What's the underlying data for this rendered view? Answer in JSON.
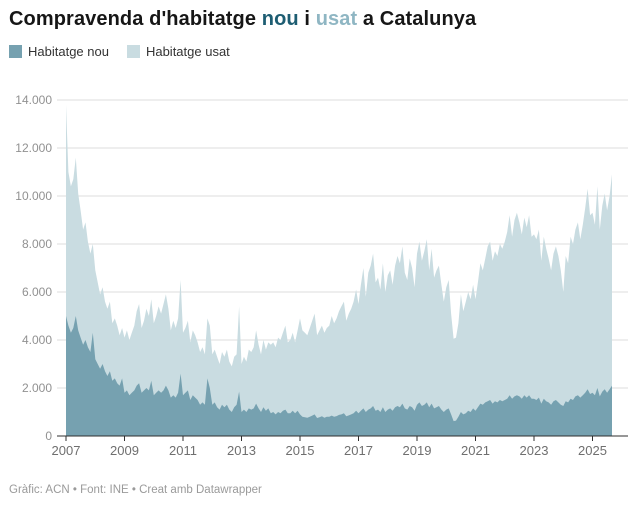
{
  "title": {
    "segments": [
      {
        "text": "Compravenda d'habitatge ",
        "color": "#161616"
      },
      {
        "text": "nou",
        "color": "#1d5d72"
      },
      {
        "text": " i ",
        "color": "#161616"
      },
      {
        "text": "usat",
        "color": "#8fb6c3"
      },
      {
        "text": " a Catalunya",
        "color": "#161616"
      }
    ]
  },
  "legend": {
    "items": [
      {
        "label": "Habitatge nou",
        "color": "#76a1b0"
      },
      {
        "label": "Habitatge usat",
        "color": "#c9dce1"
      }
    ]
  },
  "footer": {
    "text": "Gràfic: ACN • Font: INE • Creat amb Datawrapper"
  },
  "chart_data": {
    "type": "area",
    "stacked": true,
    "frequency": "monthly",
    "x_start": "2007-01",
    "x_end": "2025-09",
    "title": "Compravenda d'habitatge nou i usat a Catalunya",
    "ylabel": "",
    "xlabel": "",
    "ylim": [
      0,
      14000
    ],
    "grid": "horizontal",
    "legend_position": "top-left",
    "y_ticks": [
      {
        "v": 14000,
        "label": "14.000"
      },
      {
        "v": 12000,
        "label": "12.000"
      },
      {
        "v": 10000,
        "label": "10.000"
      },
      {
        "v": 8000,
        "label": "8.000"
      },
      {
        "v": 6000,
        "label": "6.000"
      },
      {
        "v": 4000,
        "label": "4.000"
      },
      {
        "v": 2000,
        "label": "2.000"
      },
      {
        "v": 0,
        "label": "0"
      }
    ],
    "x_ticks": [
      {
        "year": 2007,
        "label": "2007"
      },
      {
        "year": 2009,
        "label": "2009"
      },
      {
        "year": 2011,
        "label": "2011"
      },
      {
        "year": 2013,
        "label": "2013"
      },
      {
        "year": 2015,
        "label": "2015"
      },
      {
        "year": 2017,
        "label": "2017"
      },
      {
        "year": 2019,
        "label": "2019"
      },
      {
        "year": 2021,
        "label": "2021"
      },
      {
        "year": 2023,
        "label": "2023"
      },
      {
        "year": 2025,
        "label": "2025"
      }
    ],
    "series": [
      {
        "name": "Habitatge nou",
        "color": "#76a1b0",
        "values": [
          5000,
          4600,
          4300,
          4500,
          5000,
          4400,
          4100,
          3800,
          4000,
          3700,
          3500,
          4300,
          3200,
          3000,
          2800,
          3000,
          2700,
          2500,
          2700,
          2300,
          2400,
          2200,
          2100,
          2400,
          1800,
          1900,
          1700,
          1800,
          1900,
          2100,
          2200,
          1800,
          1900,
          2000,
          1900,
          2300,
          1700,
          1800,
          1900,
          1800,
          1900,
          2100,
          1900,
          1600,
          1700,
          1600,
          1800,
          2600,
          1700,
          1800,
          1900,
          1500,
          1700,
          1600,
          1500,
          1300,
          1400,
          1300,
          2400,
          2000,
          1300,
          1400,
          1200,
          1100,
          1300,
          1200,
          1300,
          1100,
          1000,
          1200,
          1300,
          1850,
          1000,
          1100,
          1000,
          1150,
          1100,
          1150,
          1350,
          1150,
          1000,
          1200,
          1050,
          1150,
          950,
          1000,
          900,
          1000,
          950,
          1050,
          1100,
          950,
          950,
          1050,
          950,
          1050,
          900,
          800,
          780,
          760,
          800,
          850,
          900,
          750,
          780,
          820,
          760,
          800,
          800,
          850,
          800,
          830,
          880,
          900,
          950,
          820,
          860,
          900,
          950,
          1050,
          950,
          1050,
          1150,
          1000,
          1100,
          1150,
          1250,
          1050,
          1100,
          1000,
          1200,
          1000,
          1100,
          1150,
          1050,
          1200,
          1250,
          1200,
          1350,
          1150,
          1100,
          1250,
          1200,
          1050,
          1300,
          1400,
          1250,
          1300,
          1400,
          1200,
          1350,
          1150,
          1200,
          1250,
          1100,
          1000,
          1100,
          1150,
          900,
          620,
          640,
          800,
          1000,
          900,
          950,
          1050,
          1000,
          1150,
          1050,
          1200,
          1350,
          1300,
          1400,
          1450,
          1500,
          1350,
          1450,
          1400,
          1500,
          1450,
          1500,
          1550,
          1700,
          1550,
          1650,
          1700,
          1650,
          1550,
          1700,
          1600,
          1700,
          1550,
          1550,
          1500,
          1600,
          1350,
          1550,
          1450,
          1400,
          1300,
          1450,
          1500,
          1400,
          1300,
          1250,
          1450,
          1400,
          1550,
          1500,
          1650,
          1700,
          1600,
          1700,
          1800,
          1950,
          1750,
          1800,
          1700,
          2000,
          1650,
          1850,
          1950,
          1800,
          1950,
          2100
        ]
      },
      {
        "name": "Habitatge usat",
        "color": "#c9dce1",
        "values": [
          8800,
          6400,
          6100,
          6200,
          6600,
          5700,
          5300,
          4800,
          4900,
          4400,
          4100,
          3700,
          3700,
          3400,
          3100,
          3200,
          2900,
          2800,
          2900,
          2400,
          2500,
          2400,
          2100,
          2100,
          2300,
          2500,
          2300,
          2500,
          2700,
          3100,
          3300,
          2700,
          2900,
          3300,
          3100,
          3400,
          3000,
          3200,
          3500,
          3300,
          3600,
          3800,
          3400,
          2800,
          3100,
          2900,
          3100,
          3900,
          2600,
          2700,
          2900,
          2400,
          2700,
          2600,
          2400,
          2200,
          2300,
          2100,
          2500,
          2600,
          2100,
          2200,
          2100,
          1900,
          2200,
          2100,
          2300,
          2000,
          1900,
          2100,
          2100,
          3550,
          2000,
          2200,
          2100,
          2450,
          2400,
          2550,
          3050,
          2650,
          2400,
          2800,
          2550,
          2750,
          2850,
          2900,
          2800,
          3100,
          3050,
          3250,
          3500,
          2950,
          3050,
          3250,
          2950,
          3350,
          4000,
          3600,
          3520,
          3440,
          3700,
          3950,
          4200,
          3450,
          3620,
          3780,
          3540,
          3700,
          3800,
          4150,
          3900,
          4070,
          4320,
          4500,
          4650,
          3980,
          4240,
          4400,
          4650,
          5050,
          4550,
          5250,
          5850,
          4800,
          5700,
          5950,
          6350,
          5350,
          5500,
          5100,
          6000,
          5000,
          5600,
          5750,
          5250,
          5900,
          6250,
          6000,
          6550,
          5650,
          5400,
          6150,
          5800,
          5150,
          6300,
          6700,
          6050,
          6400,
          6800,
          5700,
          6450,
          5450,
          5700,
          5850,
          5200,
          4600,
          5100,
          5350,
          4200,
          3430,
          3460,
          3900,
          4900,
          4300,
          4650,
          4950,
          4700,
          5150,
          4650,
          5200,
          5850,
          5600,
          6000,
          6450,
          6600,
          5950,
          6250,
          6100,
          6500,
          6350,
          6600,
          6950,
          7500,
          6750,
          7350,
          7600,
          7250,
          6850,
          7400,
          7100,
          7500,
          6750,
          6850,
          6700,
          7000,
          5950,
          6750,
          6350,
          6000,
          5600,
          6150,
          6400,
          6100,
          5600,
          4750,
          6050,
          5800,
          6750,
          6500,
          6950,
          7200,
          6600,
          7100,
          7700,
          8350,
          7450,
          7500,
          7100,
          8400,
          6950,
          7750,
          8150,
          7600,
          8050,
          8800
        ]
      }
    ]
  }
}
